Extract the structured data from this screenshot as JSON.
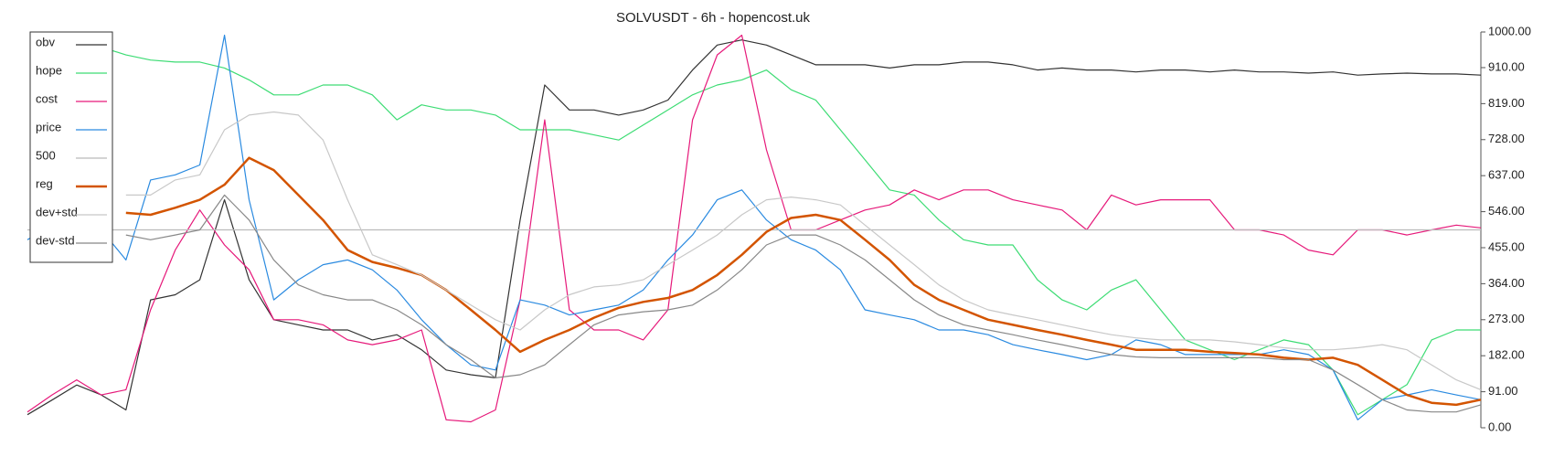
{
  "chart_data": {
    "type": "line",
    "title": "SOLVUSDT - 6h - hopencost.uk",
    "ylim": [
      0,
      1000
    ],
    "yticks": [
      {
        "value": 0,
        "label": "0.00"
      },
      {
        "value": 91,
        "label": "91.00"
      },
      {
        "value": 182,
        "label": "182.00"
      },
      {
        "value": 273,
        "label": "273.00"
      },
      {
        "value": 364,
        "label": "364.00"
      },
      {
        "value": 455,
        "label": "455.00"
      },
      {
        "value": 546,
        "label": "546.00"
      },
      {
        "value": 637,
        "label": "637.00"
      },
      {
        "value": 728,
        "label": "728.00"
      },
      {
        "value": 819,
        "label": "819.00"
      },
      {
        "value": 910,
        "label": "910.00"
      },
      {
        "value": 1000,
        "label": "1000.00"
      }
    ],
    "axis_side": "right",
    "legend": "upper left",
    "series": [
      {
        "name": "obv",
        "color": "#333333",
        "values": [
          33,
          70,
          108,
          83,
          45,
          323,
          336,
          374,
          576,
          374,
          273,
          260,
          247,
          247,
          222,
          235,
          197,
          146,
          134,
          126,
          525,
          866,
          803,
          803,
          790,
          803,
          828,
          904,
          967,
          980,
          967,
          942,
          917,
          917,
          917,
          909,
          917,
          917,
          924,
          924,
          917,
          904,
          909,
          904,
          904,
          899,
          904,
          904,
          899,
          904,
          899,
          899,
          896,
          899,
          891,
          894,
          896,
          894,
          894,
          891
        ]
      },
      {
        "name": "hope",
        "color": "#3ddc74",
        "values": [
          null,
          null,
          null,
          962,
          942,
          929,
          924,
          924,
          909,
          879,
          841,
          841,
          866,
          866,
          841,
          778,
          816,
          803,
          803,
          790,
          753,
          753,
          753,
          740,
          727,
          765,
          803,
          841,
          866,
          879,
          904,
          854,
          828,
          753,
          677,
          601,
          588,
          525,
          475,
          462,
          462,
          374,
          323,
          298,
          348,
          374,
          298,
          222,
          197,
          172,
          197,
          222,
          210,
          146,
          33,
          71,
          109,
          222,
          247,
          247
        ]
      },
      {
        "name": "cost",
        "color": "#e6197a",
        "values": [
          40,
          83,
          121,
          83,
          96,
          298,
          449,
          550,
          462,
          399,
          273,
          273,
          260,
          222,
          210,
          222,
          247,
          20,
          15,
          45,
          323,
          778,
          298,
          247,
          247,
          222,
          298,
          778,
          942,
          992,
          702,
          500,
          500,
          525,
          550,
          563,
          601,
          576,
          601,
          601,
          576,
          563,
          550,
          500,
          588,
          563,
          576,
          576,
          576,
          500,
          500,
          487,
          449,
          437,
          500,
          500,
          487,
          500,
          512,
          505
        ]
      },
      {
        "name": "price",
        "color": "#2a8ae0",
        "values": [
          475,
          512,
          500,
          500,
          424,
          626,
          639,
          664,
          992,
          576,
          323,
          374,
          412,
          424,
          399,
          348,
          273,
          210,
          159,
          146,
          323,
          310,
          285,
          298,
          310,
          348,
          424,
          487,
          576,
          601,
          525,
          475,
          449,
          399,
          298,
          285,
          273,
          247,
          247,
          235,
          210,
          197,
          185,
          172,
          185,
          222,
          210,
          185,
          185,
          185,
          185,
          197,
          185,
          146,
          20,
          71,
          83,
          96,
          83,
          71
        ]
      },
      {
        "name": "500",
        "color": "#bbbbbb",
        "values": [
          500,
          500,
          500,
          500,
          500,
          500,
          500,
          500,
          500,
          500,
          500,
          500,
          500,
          500,
          500,
          500,
          500,
          500,
          500,
          500,
          500,
          500,
          500,
          500,
          500,
          500,
          500,
          500,
          500,
          500,
          500,
          500,
          500,
          500,
          500,
          500,
          500,
          500,
          500,
          500,
          500,
          500,
          500,
          500,
          500,
          500,
          500,
          500,
          500,
          500,
          500,
          500,
          500,
          500,
          500,
          500,
          500,
          500,
          500,
          500
        ]
      },
      {
        "name": "reg",
        "color": "#d35400",
        "width": 2.5,
        "values": [
          null,
          null,
          null,
          null,
          543,
          538,
          556,
          576,
          614,
          682,
          651,
          588,
          525,
          449,
          419,
          404,
          386,
          348,
          298,
          247,
          192,
          222,
          247,
          278,
          303,
          318,
          328,
          348,
          386,
          437,
          495,
          530,
          538,
          525,
          475,
          424,
          361,
          323,
          298,
          273,
          260,
          247,
          235,
          222,
          210,
          197,
          197,
          197,
          192,
          189,
          185,
          177,
          172,
          177,
          159,
          121,
          83,
          63,
          58,
          71
        ]
      },
      {
        "name": "dev+std",
        "color": "#c8c8c8",
        "values": [
          null,
          null,
          null,
          null,
          588,
          588,
          626,
          639,
          753,
          790,
          798,
          790,
          727,
          576,
          437,
          412,
          386,
          348,
          310,
          273,
          247,
          298,
          336,
          356,
          361,
          374,
          412,
          449,
          487,
          538,
          576,
          583,
          576,
          563,
          512,
          462,
          412,
          361,
          323,
          298,
          285,
          273,
          260,
          247,
          235,
          227,
          222,
          222,
          222,
          217,
          210,
          202,
          197,
          197,
          202,
          210,
          197,
          159,
          121,
          96
        ]
      },
      {
        "name": "dev-std",
        "color": "#888888",
        "values": [
          null,
          null,
          null,
          null,
          487,
          475,
          487,
          500,
          588,
          525,
          424,
          361,
          336,
          323,
          323,
          298,
          260,
          210,
          172,
          126,
          134,
          159,
          210,
          260,
          285,
          293,
          298,
          310,
          348,
          399,
          462,
          487,
          487,
          462,
          424,
          374,
          323,
          285,
          260,
          247,
          235,
          222,
          210,
          197,
          185,
          179,
          177,
          177,
          177,
          177,
          177,
          172,
          172,
          146,
          109,
          71,
          45,
          40,
          40,
          58
        ]
      }
    ]
  }
}
